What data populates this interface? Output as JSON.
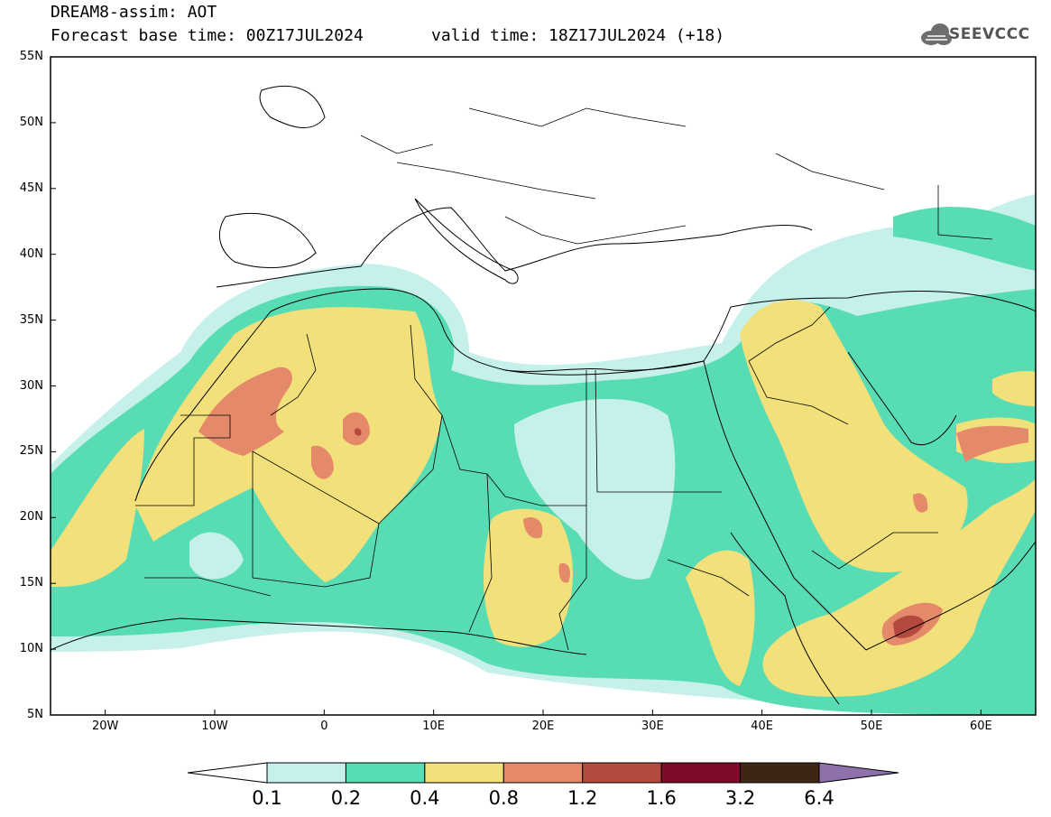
{
  "header": {
    "title_line1": "DREAM8-assim: AOT",
    "title_line2": "Forecast base time: 00Z17JUL2024",
    "valid_time": "valid time: 18Z17JUL2024 (+18)",
    "logo_text": "SEEVCCC",
    "logo_icon": "cloud-icon"
  },
  "map": {
    "lat_ticks": [
      "55N",
      "50N",
      "45N",
      "40N",
      "35N",
      "30N",
      "25N",
      "20N",
      "15N",
      "10N",
      "5N"
    ],
    "lon_ticks": [
      "20W",
      "10W",
      "0",
      "10E",
      "20E",
      "30E",
      "40E",
      "50E",
      "60E"
    ],
    "lat_range": [
      5,
      55
    ],
    "lon_range": [
      -25,
      65
    ]
  },
  "colorbar": {
    "labels": [
      "0.1",
      "0.2",
      "0.4",
      "0.8",
      "1.2",
      "1.6",
      "3.2",
      "6.4"
    ],
    "colors": [
      "#ffffff",
      "#c6f0ea",
      "#58dcb4",
      "#f2e07a",
      "#e48a6a",
      "#b44a3e",
      "#7c0a28",
      "#3e2614",
      "#8e70aa"
    ]
  }
}
